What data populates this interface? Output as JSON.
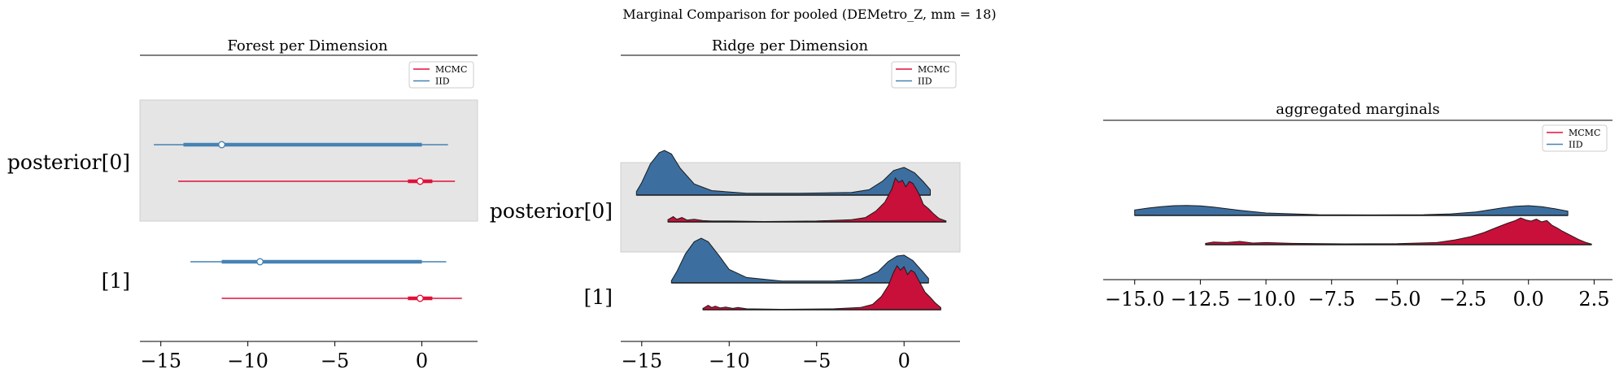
{
  "figure": {
    "suptitle": "Marginal Comparison for pooled (DEMetro_Z, mm = 18)"
  },
  "colors": {
    "mcmc": "#e0103a",
    "mcmc_fill": "#c8103a",
    "iid": "#4682b4",
    "iid_fill": "#3c6fa0",
    "band": "#e5e5e5"
  },
  "chart_data": [
    {
      "type": "forest",
      "title": "Forest per Dimension",
      "xlim": [
        -16.2,
        3.2
      ],
      "xticks": [
        -15,
        -10,
        -5,
        0
      ],
      "xtick_labels": [
        "−15",
        "−10",
        "−5",
        "0"
      ],
      "legend": {
        "placement": "top-right",
        "entries": [
          "MCMC",
          "IID"
        ]
      },
      "rows": [
        {
          "label": "posterior[0]",
          "shaded": true,
          "series": [
            {
              "name": "IID",
              "hdi": [
                -15.4,
                1.5
              ],
              "iqr": [
                -13.7,
                0.0
              ],
              "median": -11.5
            },
            {
              "name": "MCMC",
              "hdi": [
                -14.0,
                1.9
              ],
              "iqr": [
                -0.8,
                0.6
              ],
              "median": -0.1
            }
          ]
        },
        {
          "label": "[1]",
          "shaded": false,
          "series": [
            {
              "name": "IID",
              "hdi": [
                -13.3,
                1.4
              ],
              "iqr": [
                -11.5,
                0.0
              ],
              "median": -9.3
            },
            {
              "name": "MCMC",
              "hdi": [
                -11.5,
                2.3
              ],
              "iqr": [
                -0.8,
                0.6
              ],
              "median": -0.1
            }
          ]
        }
      ]
    },
    {
      "type": "ridge",
      "title": "Ridge per Dimension",
      "xlim": [
        -16.2,
        3.2
      ],
      "xticks": [
        -15,
        -10,
        -5,
        0
      ],
      "xtick_labels": [
        "−15",
        "−10",
        "−5",
        "0"
      ],
      "legend": {
        "placement": "top-right",
        "entries": [
          "MCMC",
          "IID"
        ]
      },
      "rows": [
        {
          "label": "posterior[0]",
          "shaded": true,
          "series": [
            {
              "name": "IID",
              "x": [
                -15.3,
                -15.0,
                -14.5,
                -14.0,
                -13.7,
                -13.3,
                -12.8,
                -12.0,
                -11.0,
                -9.0,
                -6.0,
                -3.0,
                -2.0,
                -1.2,
                -0.6,
                0.0,
                0.6,
                1.1,
                1.5
              ],
              "density": [
                0.08,
                0.28,
                0.7,
                0.95,
                1.0,
                0.92,
                0.6,
                0.25,
                0.1,
                0.04,
                0.04,
                0.06,
                0.12,
                0.32,
                0.55,
                0.62,
                0.5,
                0.3,
                0.12
              ]
            },
            {
              "name": "MCMC",
              "x": [
                -13.5,
                -13.2,
                -13.0,
                -12.7,
                -12.4,
                -12.0,
                -11.5,
                -11.0,
                -10.0,
                -8.0,
                -5.0,
                -3.0,
                -2.2,
                -1.6,
                -1.1,
                -0.7,
                -0.5,
                -0.3,
                -0.1,
                0.1,
                0.3,
                0.5,
                0.7,
                0.9,
                1.1,
                1.4,
                1.7,
                2.0,
                2.4
              ],
              "density": [
                0.05,
                0.12,
                0.06,
                0.1,
                0.04,
                0.06,
                0.03,
                0.02,
                0.02,
                0.01,
                0.02,
                0.05,
                0.1,
                0.25,
                0.45,
                0.75,
                1.0,
                0.9,
                0.95,
                0.8,
                0.92,
                0.88,
                0.75,
                0.6,
                0.4,
                0.3,
                0.18,
                0.08,
                0.02
              ]
            }
          ]
        },
        {
          "label": "[1]",
          "shaded": false,
          "series": [
            {
              "name": "IID",
              "x": [
                -13.3,
                -13.0,
                -12.5,
                -12.0,
                -11.6,
                -11.2,
                -10.6,
                -10.0,
                -9.0,
                -7.0,
                -4.0,
                -2.5,
                -1.5,
                -0.9,
                -0.4,
                0.0,
                0.5,
                1.0,
                1.4
              ],
              "density": [
                0.05,
                0.25,
                0.65,
                0.92,
                1.0,
                0.92,
                0.62,
                0.3,
                0.12,
                0.04,
                0.04,
                0.08,
                0.25,
                0.48,
                0.6,
                0.62,
                0.5,
                0.28,
                0.1
              ]
            },
            {
              "name": "MCMC",
              "x": [
                -11.5,
                -11.2,
                -11.0,
                -10.8,
                -10.5,
                -10.2,
                -9.8,
                -9.5,
                -9.0,
                -7.0,
                -4.0,
                -2.5,
                -1.8,
                -1.3,
                -0.9,
                -0.6,
                -0.4,
                -0.2,
                0.0,
                0.2,
                0.4,
                0.6,
                0.8,
                1.0,
                1.2,
                1.5,
                1.8,
                2.1
              ],
              "density": [
                0.03,
                0.1,
                0.05,
                0.08,
                0.04,
                0.06,
                0.03,
                0.05,
                0.02,
                0.01,
                0.02,
                0.05,
                0.12,
                0.3,
                0.55,
                0.85,
                1.0,
                0.9,
                0.98,
                0.8,
                0.9,
                0.85,
                0.7,
                0.55,
                0.4,
                0.28,
                0.15,
                0.05
              ]
            }
          ]
        }
      ]
    },
    {
      "type": "ridge",
      "title": "aggregated marginals",
      "xlim": [
        -16.2,
        3.2
      ],
      "xticks": [
        -15,
        -12.5,
        -10,
        -7.5,
        -5,
        -2.5,
        0,
        2.5
      ],
      "xtick_labels": [
        "−15.0",
        "−12.5",
        "−10.0",
        "−7.5",
        "−5.0",
        "−2.5",
        "0.0",
        "2.5"
      ],
      "legend": {
        "placement": "top-right",
        "entries": [
          "MCMC",
          "IID"
        ]
      },
      "rows": [
        {
          "label": "",
          "shaded": false,
          "series": [
            {
              "name": "IID",
              "x": [
                -15.0,
                -14.5,
                -14.0,
                -13.5,
                -13.0,
                -12.5,
                -12.0,
                -11.0,
                -10.0,
                -8.0,
                -6.0,
                -4.0,
                -3.0,
                -2.0,
                -1.5,
                -1.0,
                -0.5,
                0.0,
                0.5,
                1.0,
                1.5
              ],
              "density": [
                0.45,
                0.6,
                0.72,
                0.8,
                0.82,
                0.78,
                0.68,
                0.42,
                0.2,
                0.06,
                0.04,
                0.06,
                0.12,
                0.28,
                0.45,
                0.62,
                0.75,
                0.8,
                0.72,
                0.55,
                0.35
              ]
            },
            {
              "name": "MCMC",
              "x": [
                -12.3,
                -12.0,
                -11.5,
                -11.0,
                -10.5,
                -10.0,
                -9.0,
                -7.0,
                -5.0,
                -3.5,
                -2.8,
                -2.2,
                -1.7,
                -1.2,
                -0.8,
                -0.5,
                -0.3,
                -0.1,
                0.1,
                0.3,
                0.5,
                0.7,
                0.9,
                1.1,
                1.3,
                1.6,
                1.9,
                2.2,
                2.4
              ],
              "density": [
                0.05,
                0.1,
                0.08,
                0.12,
                0.06,
                0.08,
                0.05,
                0.03,
                0.04,
                0.08,
                0.18,
                0.3,
                0.45,
                0.65,
                0.8,
                0.9,
                1.0,
                0.92,
                0.88,
                0.95,
                0.85,
                0.9,
                0.72,
                0.62,
                0.5,
                0.35,
                0.2,
                0.08,
                0.02
              ]
            }
          ]
        }
      ]
    }
  ]
}
